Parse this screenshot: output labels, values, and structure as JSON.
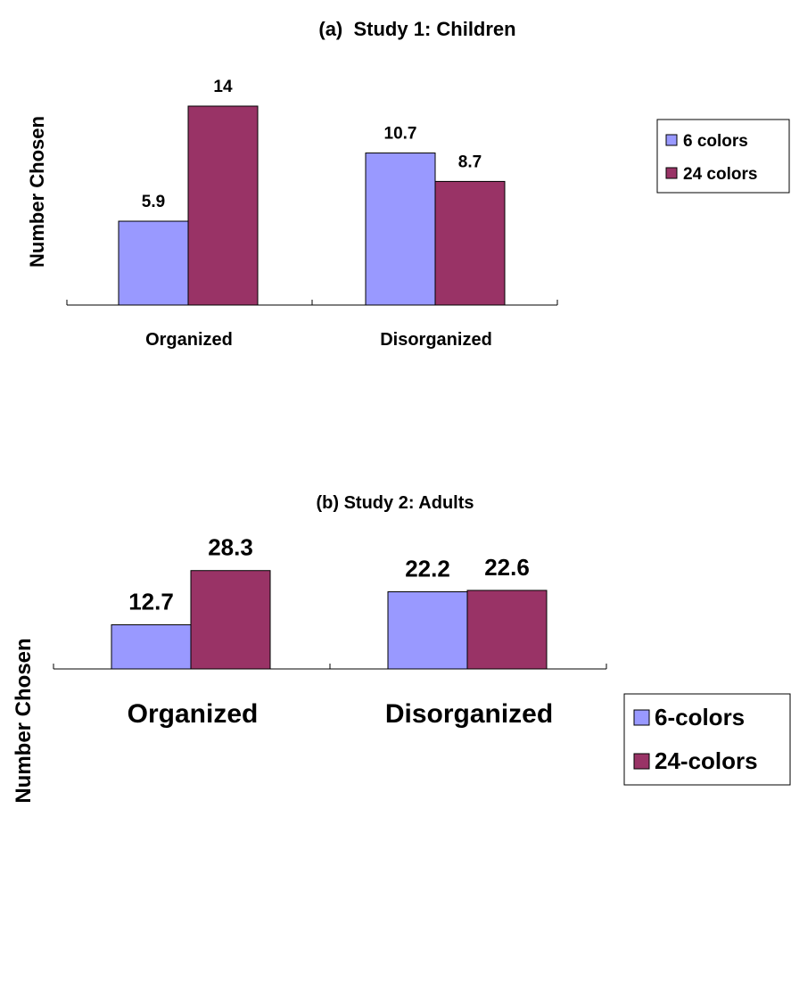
{
  "chart_data": [
    {
      "type": "bar",
      "title": "(a)  Study 1: Children",
      "xlabel": "",
      "ylabel": "Number Chosen",
      "categories": [
        "Organized",
        "Disorganized"
      ],
      "series": [
        {
          "name": "6 colors",
          "values": [
            5.9,
            10.7
          ],
          "color": "#9999ff"
        },
        {
          "name": "24 colors",
          "values": [
            14,
            8.7
          ],
          "color": "#993366"
        }
      ],
      "data_labels": [
        [
          "5.9",
          "10.7"
        ],
        [
          "14",
          "8.7"
        ]
      ],
      "ylim": [
        0,
        16
      ],
      "grid": false,
      "legend": "right"
    },
    {
      "type": "bar",
      "title": "(b) Study 2: Adults",
      "xlabel": "",
      "ylabel": "Number Chosen",
      "categories": [
        "Organized",
        "Disorganized"
      ],
      "series": [
        {
          "name": "6-colors",
          "values": [
            12.7,
            22.2
          ],
          "color": "#9999ff"
        },
        {
          "name": "24-colors",
          "values": [
            28.3,
            22.6
          ],
          "color": "#993366"
        }
      ],
      "data_labels": [
        [
          "12.7",
          "22.2"
        ],
        [
          "28.3",
          "22.6"
        ]
      ],
      "ylim": [
        0,
        32
      ],
      "grid": false,
      "legend": "right"
    }
  ]
}
